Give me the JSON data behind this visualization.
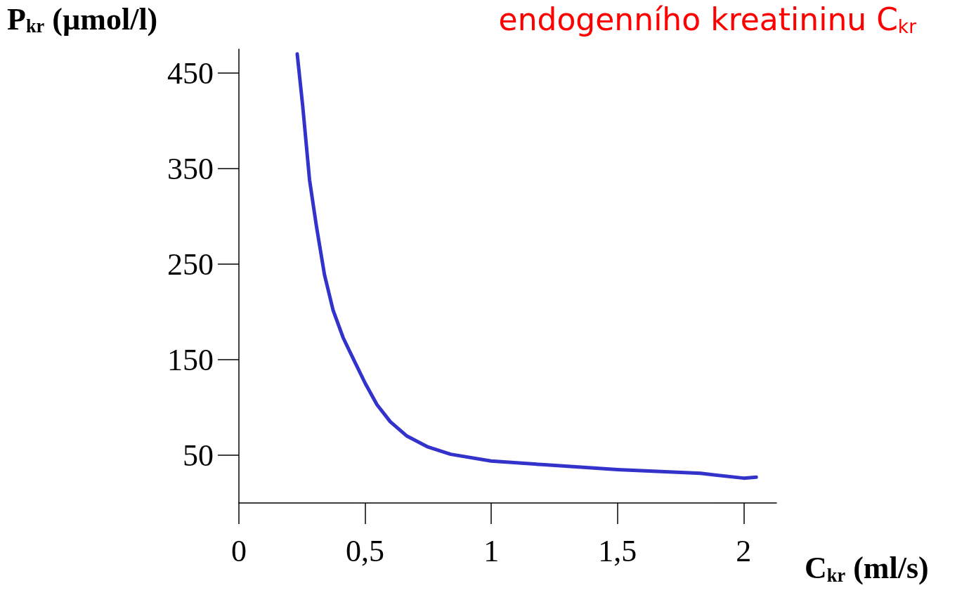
{
  "chart_data": {
    "type": "line",
    "title": "endogenního kreatininu C$_{kr}$",
    "xlabel": "C$_{kr}$ (ml/s)",
    "ylabel": "P$_{kr}$ (µmol/l)",
    "x": [
      0.231,
      0.253,
      0.28,
      0.307,
      0.339,
      0.373,
      0.413,
      0.453,
      0.501,
      0.547,
      0.6,
      0.666,
      0.746,
      0.839,
      0.999,
      1.21,
      1.5,
      1.83,
      2.0,
      2.05
    ],
    "series": [
      {
        "color": "#3333cc",
        "values": [
          470,
          415,
          338,
          290,
          239,
          202,
          173,
          151,
          125,
          103,
          85,
          70,
          59,
          51,
          44,
          40,
          35,
          31,
          26,
          27
        ]
      }
    ],
    "xlim": [
      0,
      2.13
    ],
    "xticks": [
      0,
      {
        "value": 0.5,
        "label": "0,5"
      },
      1,
      {
        "value": 1.5,
        "label": "1,5"
      },
      2
    ],
    "ylim": [
      0,
      475
    ],
    "yticks": [
      50,
      150,
      250,
      350,
      450
    ],
    "grid": false,
    "marker": "none",
    "line_style": "solid"
  }
}
